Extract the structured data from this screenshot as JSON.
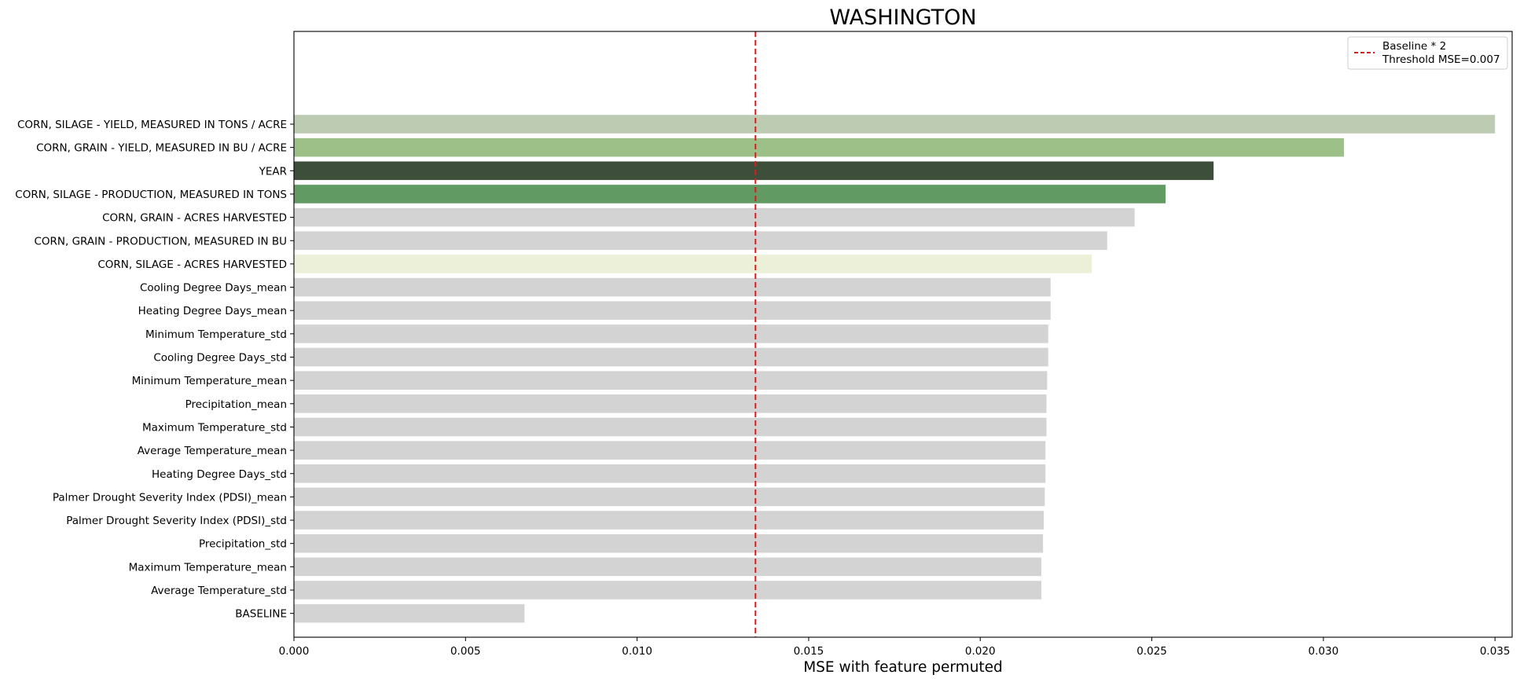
{
  "chart_data": {
    "type": "bar",
    "orientation": "horizontal",
    "title": "WASHINGTON",
    "xlabel": "MSE with feature permuted",
    "ylabel": "",
    "xlim": [
      0,
      0.0355
    ],
    "xticks": [
      0.0,
      0.005,
      0.01,
      0.015,
      0.02,
      0.025,
      0.03,
      0.035
    ],
    "xtick_labels": [
      "0.000",
      "0.005",
      "0.010",
      "0.015",
      "0.020",
      "0.025",
      "0.030",
      "0.035"
    ],
    "grid": false,
    "legend_position": "top-right",
    "legend_entries": [
      "Baseline * 2",
      "Threshold MSE=0.007"
    ],
    "threshold_line": {
      "value": 0.01345,
      "color": "#e31a1c",
      "style": "dashed"
    },
    "bars": [
      {
        "label": "CORN, SILAGE - YIELD, MEASURED IN TONS / ACRE",
        "value": 0.035,
        "color": "#bccbb2"
      },
      {
        "label": "CORN, GRAIN - YIELD, MEASURED IN BU / ACRE",
        "value": 0.0306,
        "color": "#9dbf88"
      },
      {
        "label": "YEAR",
        "value": 0.0268,
        "color": "#3d4e3a"
      },
      {
        "label": "CORN, SILAGE - PRODUCTION, MEASURED IN TONS",
        "value": 0.0254,
        "color": "#619a63"
      },
      {
        "label": "CORN, GRAIN - ACRES HARVESTED",
        "value": 0.0245,
        "color": "#d3d3d3"
      },
      {
        "label": "CORN, GRAIN - PRODUCTION, MEASURED IN BU",
        "value": 0.0237,
        "color": "#d3d3d3"
      },
      {
        "label": "CORN, SILAGE - ACRES HARVESTED",
        "value": 0.02325,
        "color": "#edf0d8"
      },
      {
        "label": "Cooling Degree Days_mean",
        "value": 0.02205,
        "color": "#d3d3d3"
      },
      {
        "label": "Heating Degree Days_mean",
        "value": 0.02205,
        "color": "#d3d3d3"
      },
      {
        "label": "Minimum Temperature_std",
        "value": 0.02198,
        "color": "#d3d3d3"
      },
      {
        "label": "Cooling Degree Days_std",
        "value": 0.02198,
        "color": "#d3d3d3"
      },
      {
        "label": "Minimum Temperature_mean",
        "value": 0.02195,
        "color": "#d3d3d3"
      },
      {
        "label": "Precipitation_mean",
        "value": 0.02193,
        "color": "#d3d3d3"
      },
      {
        "label": "Maximum Temperature_std",
        "value": 0.02193,
        "color": "#d3d3d3"
      },
      {
        "label": "Average Temperature_mean",
        "value": 0.0219,
        "color": "#d3d3d3"
      },
      {
        "label": "Heating Degree Days_std",
        "value": 0.0219,
        "color": "#d3d3d3"
      },
      {
        "label": "Palmer Drought Severity Index (PDSI)_mean",
        "value": 0.02188,
        "color": "#d3d3d3"
      },
      {
        "label": "Palmer Drought Severity Index (PDSI)_std",
        "value": 0.02185,
        "color": "#d3d3d3"
      },
      {
        "label": "Precipitation_std",
        "value": 0.02183,
        "color": "#d3d3d3"
      },
      {
        "label": "Maximum Temperature_mean",
        "value": 0.02178,
        "color": "#d3d3d3"
      },
      {
        "label": "Average Temperature_std",
        "value": 0.02178,
        "color": "#d3d3d3"
      },
      {
        "label": "BASELINE",
        "value": 0.00672,
        "color": "#d3d3d3"
      }
    ]
  }
}
